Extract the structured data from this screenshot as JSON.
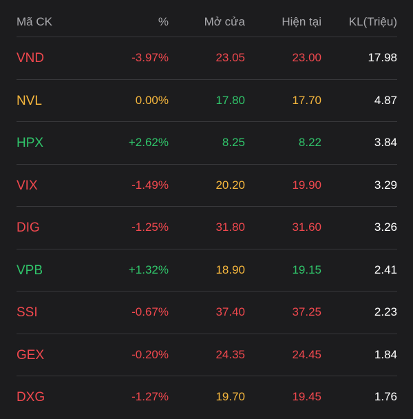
{
  "colors": {
    "red": "#f0484e",
    "green": "#30c46a",
    "yellow": "#f5b63d",
    "white": "#ffffff",
    "header_text": "#a8a8ac",
    "background": "#1c1c1e",
    "divider": "#38383b"
  },
  "table": {
    "headers": {
      "symbol": "Mã CK",
      "percent": "%",
      "open": "Mở cửa",
      "current": "Hiện tại",
      "volume": "KL(Triệu)"
    },
    "rows": [
      {
        "symbol": "VND",
        "percent": "-3.97%",
        "open": "23.05",
        "current": "23.00",
        "volume": "17.98",
        "symbol_color": "red",
        "percent_color": "red",
        "open_color": "red",
        "current_color": "red"
      },
      {
        "symbol": "NVL",
        "percent": "0.00%",
        "open": "17.80",
        "current": "17.70",
        "volume": "4.87",
        "symbol_color": "yellow",
        "percent_color": "yellow",
        "open_color": "green",
        "current_color": "yellow"
      },
      {
        "symbol": "HPX",
        "percent": "+2.62%",
        "open": "8.25",
        "current": "8.22",
        "volume": "3.84",
        "symbol_color": "green",
        "percent_color": "green",
        "open_color": "green",
        "current_color": "green"
      },
      {
        "symbol": "VIX",
        "percent": "-1.49%",
        "open": "20.20",
        "current": "19.90",
        "volume": "3.29",
        "symbol_color": "red",
        "percent_color": "red",
        "open_color": "yellow",
        "current_color": "red"
      },
      {
        "symbol": "DIG",
        "percent": "-1.25%",
        "open": "31.80",
        "current": "31.60",
        "volume": "3.26",
        "symbol_color": "red",
        "percent_color": "red",
        "open_color": "red",
        "current_color": "red"
      },
      {
        "symbol": "VPB",
        "percent": "+1.32%",
        "open": "18.90",
        "current": "19.15",
        "volume": "2.41",
        "symbol_color": "green",
        "percent_color": "green",
        "open_color": "yellow",
        "current_color": "green"
      },
      {
        "symbol": "SSI",
        "percent": "-0.67%",
        "open": "37.40",
        "current": "37.25",
        "volume": "2.23",
        "symbol_color": "red",
        "percent_color": "red",
        "open_color": "red",
        "current_color": "red"
      },
      {
        "symbol": "GEX",
        "percent": "-0.20%",
        "open": "24.35",
        "current": "24.45",
        "volume": "1.84",
        "symbol_color": "red",
        "percent_color": "red",
        "open_color": "red",
        "current_color": "red"
      },
      {
        "symbol": "DXG",
        "percent": "-1.27%",
        "open": "19.70",
        "current": "19.45",
        "volume": "1.76",
        "symbol_color": "red",
        "percent_color": "red",
        "open_color": "yellow",
        "current_color": "red"
      }
    ]
  }
}
